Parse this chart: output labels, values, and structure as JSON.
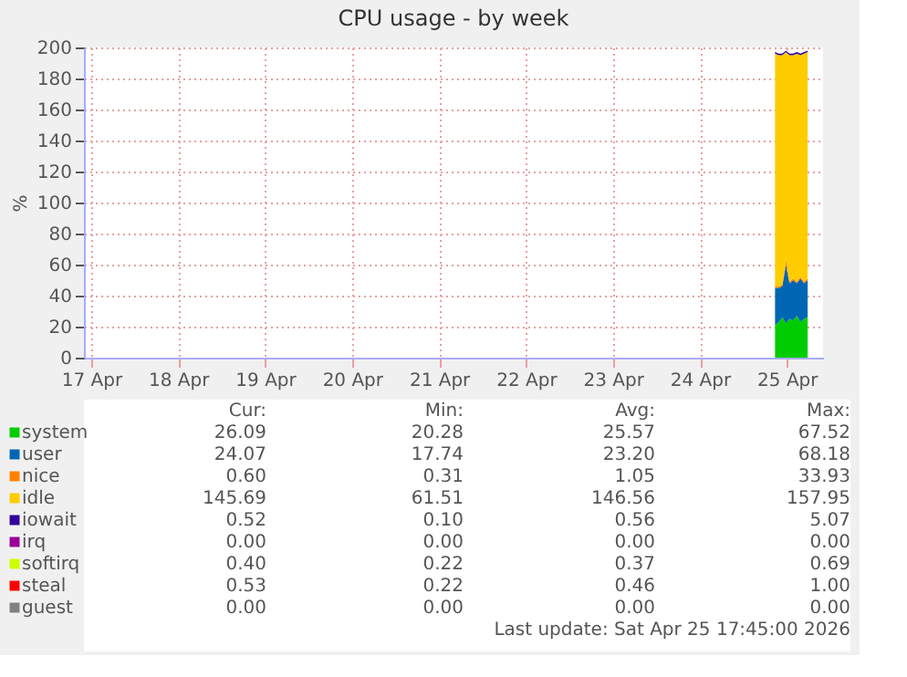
{
  "chart_data": {
    "type": "area",
    "title": "CPU usage - by week",
    "ylabel": "%",
    "stacked": true,
    "grid": true,
    "legend": "bottom",
    "xlim": [
      "2026-04-17T10:00",
      "2026-04-25T22:00"
    ],
    "xticks": [
      {
        "value": "2026-04-17T12:00",
        "label": "17 Apr"
      },
      {
        "value": "2026-04-18T12:00",
        "label": "18 Apr"
      },
      {
        "value": "2026-04-19T12:00",
        "label": "19 Apr"
      },
      {
        "value": "2026-04-20T12:00",
        "label": "20 Apr"
      },
      {
        "value": "2026-04-21T12:00",
        "label": "21 Apr"
      },
      {
        "value": "2026-04-22T12:00",
        "label": "22 Apr"
      },
      {
        "value": "2026-04-23T12:00",
        "label": "23 Apr"
      },
      {
        "value": "2026-04-24T12:00",
        "label": "24 Apr"
      },
      {
        "value": "2026-04-25T12:00",
        "label": "25 Apr"
      }
    ],
    "ylim": [
      0,
      200
    ],
    "yticks": [
      0,
      20,
      40,
      60,
      80,
      100,
      120,
      140,
      160,
      180,
      200
    ],
    "x": [
      "2026-04-25T08:45",
      "2026-04-25T09:45",
      "2026-04-25T10:45",
      "2026-04-25T11:45",
      "2026-04-25T12:45",
      "2026-04-25T13:45",
      "2026-04-25T14:45",
      "2026-04-25T15:45",
      "2026-04-25T16:45",
      "2026-04-25T17:45"
    ],
    "series": [
      {
        "name": "system",
        "color": "#00cc00",
        "values": [
          21,
          23,
          26,
          22,
          25,
          24,
          27,
          23,
          25,
          26
        ]
      },
      {
        "name": "user",
        "color": "#0066b3",
        "values": [
          24,
          22,
          20,
          38,
          23,
          26,
          21,
          28,
          23,
          24
        ]
      },
      {
        "name": "nice",
        "color": "#ff8000",
        "values": [
          1,
          1,
          1,
          3,
          1,
          1,
          1,
          1,
          1,
          1
        ]
      },
      {
        "name": "idle",
        "color": "#ffcc00",
        "values": [
          150,
          149,
          148,
          134,
          146,
          144,
          147,
          143,
          147,
          146
        ]
      },
      {
        "name": "iowait",
        "color": "#330099",
        "values": [
          1,
          1,
          1,
          1,
          1,
          1,
          1,
          1,
          1,
          1
        ]
      },
      {
        "name": "irq",
        "color": "#990099",
        "values": [
          null,
          null,
          null,
          null,
          null,
          null,
          null,
          null,
          null,
          null
        ]
      },
      {
        "name": "softirq",
        "color": "#ccff00",
        "values": [
          null,
          null,
          null,
          null,
          null,
          null,
          null,
          null,
          null,
          null
        ]
      },
      {
        "name": "steal",
        "color": "#ff0000",
        "values": [
          null,
          null,
          null,
          null,
          null,
          null,
          null,
          null,
          null,
          null
        ]
      },
      {
        "name": "guest",
        "color": "#808080",
        "values": [
          null,
          null,
          null,
          null,
          null,
          null,
          null,
          null,
          null,
          null
        ]
      }
    ],
    "annotations": [
      "Cur:",
      "Min:",
      "Avg:",
      "Max:",
      "26.09",
      "20.28",
      "25.57",
      "67.52",
      "24.07",
      "17.74",
      "23.20",
      "68.18",
      "0.60",
      "0.31",
      "1.05",
      "33.93",
      "145.69",
      "61.51",
      "146.56",
      "157.95",
      "0.52",
      "0.10",
      "0.56",
      "5.07",
      "0.00",
      "0.00",
      "0.00",
      "0.00",
      "0.40",
      "0.22",
      "0.37",
      "0.69",
      "0.53",
      "0.22",
      "0.46",
      "1.00",
      "0.00",
      "0.00",
      "0.00",
      "0.00",
      "Last update: Sat Apr 25 17:45:00 2026"
    ]
  }
}
